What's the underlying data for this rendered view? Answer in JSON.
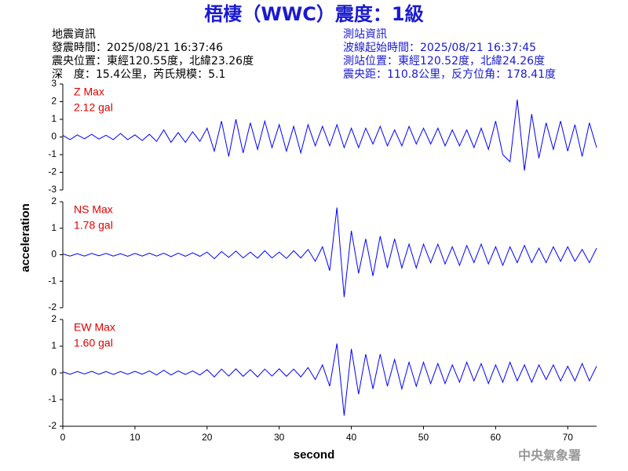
{
  "header": {
    "title": "梧棲（WWC）震度：1級",
    "left": [
      "地震資訊",
      "發震時間：2025/08/21 16:37:46",
      "震央位置：東經120.55度，北緯23.26度",
      "深　度：15.4公里，芮氏規模：5.1"
    ],
    "right": [
      "測站資訊",
      "波線起始時間：2025/08/21 16:37:45",
      "測站位置：東經120.52度，北緯24.26度",
      "震央距：110.8公里，反方位角：178.41度"
    ]
  },
  "footer": "中央氣象署",
  "chart_data": {
    "type": "seismogram",
    "xlabel": "second",
    "ylabel": "acceleration",
    "color": "#0000ff",
    "xlim": [
      0,
      74
    ],
    "xticks": [
      0,
      10,
      20,
      30,
      40,
      50,
      60,
      70
    ],
    "x": [
      0,
      1,
      2,
      3,
      4,
      5,
      6,
      7,
      8,
      9,
      10,
      11,
      12,
      13,
      14,
      15,
      16,
      17,
      18,
      19,
      20,
      21,
      22,
      23,
      24,
      25,
      26,
      27,
      28,
      29,
      30,
      31,
      32,
      33,
      34,
      35,
      36,
      37,
      38,
      39,
      40,
      41,
      42,
      43,
      44,
      45,
      46,
      47,
      48,
      49,
      50,
      51,
      52,
      53,
      54,
      55,
      56,
      57,
      58,
      59,
      60,
      61,
      62,
      63,
      64,
      65,
      66,
      67,
      68,
      69,
      70,
      71,
      72,
      73,
      74
    ],
    "panels": [
      {
        "name": "Z Max",
        "max_label": "2.12 gal",
        "ylim": [
          -3,
          3
        ],
        "yticks": [
          -3,
          -2,
          -1,
          0,
          1,
          2,
          3
        ],
        "values": [
          0.1,
          -0.15,
          0.12,
          -0.1,
          0.15,
          -0.12,
          0.1,
          -0.15,
          0.2,
          -0.15,
          0.12,
          -0.2,
          0.15,
          -0.25,
          0.4,
          -0.3,
          0.25,
          -0.3,
          0.3,
          -0.25,
          0.5,
          -0.8,
          0.9,
          -1.1,
          1.0,
          -0.9,
          0.8,
          -0.7,
          0.9,
          -0.6,
          0.7,
          -0.8,
          0.6,
          -0.9,
          0.7,
          -0.5,
          0.6,
          -0.5,
          0.7,
          -0.6,
          0.5,
          -0.6,
          0.5,
          -0.4,
          0.6,
          -0.5,
          0.4,
          -0.5,
          0.6,
          -0.4,
          0.5,
          -0.4,
          0.5,
          -0.5,
          0.4,
          -0.5,
          0.4,
          -0.6,
          0.5,
          -0.7,
          0.9,
          -1.0,
          -1.4,
          2.12,
          -1.9,
          1.3,
          -1.2,
          0.8,
          -0.7,
          0.9,
          -0.8,
          0.7,
          -1.1,
          0.8,
          -0.6
        ]
      },
      {
        "name": "NS Max",
        "max_label": "1.78 gal",
        "ylim": [
          -2,
          2
        ],
        "yticks": [
          -2,
          -1,
          0,
          1,
          2
        ],
        "values": [
          0.03,
          -0.05,
          0.04,
          -0.05,
          0.05,
          -0.04,
          0.05,
          -0.05,
          0.04,
          -0.06,
          0.05,
          -0.05,
          0.06,
          -0.05,
          0.06,
          -0.07,
          0.06,
          -0.06,
          0.07,
          -0.06,
          0.1,
          -0.15,
          0.12,
          -0.1,
          0.14,
          -0.12,
          0.1,
          -0.13,
          0.15,
          -0.12,
          0.1,
          -0.14,
          0.15,
          -0.12,
          0.2,
          -0.25,
          0.3,
          -0.6,
          1.78,
          -1.6,
          0.9,
          -0.7,
          0.6,
          -0.8,
          0.7,
          -0.5,
          0.6,
          -0.5,
          0.4,
          -0.5,
          0.4,
          -0.3,
          0.4,
          -0.35,
          0.3,
          -0.4,
          0.35,
          -0.3,
          0.4,
          -0.35,
          0.3,
          -0.4,
          0.3,
          -0.3,
          0.35,
          -0.3,
          0.25,
          -0.3,
          0.3,
          -0.25,
          0.3,
          -0.25,
          0.2,
          -0.3,
          0.25
        ]
      },
      {
        "name": "EW Max",
        "max_label": "1.60 gal",
        "ylim": [
          -2,
          2
        ],
        "yticks": [
          -2,
          -1,
          0,
          1,
          2
        ],
        "values": [
          0.04,
          -0.05,
          0.05,
          -0.04,
          0.06,
          -0.05,
          0.05,
          -0.06,
          0.05,
          -0.05,
          0.06,
          -0.05,
          0.07,
          -0.08,
          0.1,
          -0.08,
          0.07,
          -0.06,
          0.07,
          -0.08,
          0.12,
          -0.15,
          0.14,
          -0.12,
          0.15,
          -0.13,
          0.12,
          -0.15,
          0.14,
          -0.12,
          0.15,
          -0.13,
          0.14,
          -0.15,
          0.2,
          -0.25,
          0.3,
          -0.5,
          1.1,
          -1.6,
          0.9,
          -0.8,
          0.7,
          -0.6,
          0.7,
          -0.5,
          0.5,
          -0.6,
          0.4,
          -0.5,
          0.4,
          -0.4,
          0.35,
          -0.4,
          0.3,
          -0.35,
          0.4,
          -0.3,
          0.35,
          -0.4,
          0.3,
          -0.35,
          0.4,
          -0.3,
          0.3,
          -0.35,
          0.3,
          -0.25,
          0.3,
          -0.3,
          0.25,
          -0.3,
          0.35,
          -0.3,
          0.25
        ]
      }
    ]
  }
}
